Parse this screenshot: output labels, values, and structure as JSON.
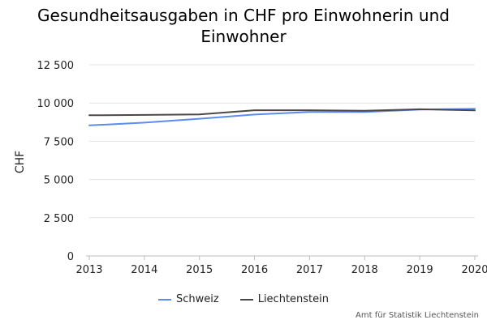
{
  "chart_data": {
    "type": "line",
    "title": "Gesundheitsausgaben in CHF pro Einwohnerin und Einwohner",
    "ylabel": "CHF",
    "xlabel": "",
    "x": [
      "2013",
      "2014",
      "2015",
      "2016",
      "2017",
      "2018",
      "2019",
      "2020"
    ],
    "ylim": [
      0,
      12500
    ],
    "yticks": [
      0,
      2500,
      5000,
      7500,
      10000,
      12500
    ],
    "ytick_labels": [
      "0",
      "2 500",
      "5 000",
      "7 500",
      "10 000",
      "12 500"
    ],
    "grid": true,
    "legend_position": "bottom-center",
    "series": [
      {
        "name": "Schweiz",
        "color": "#5b8def",
        "values": [
          8540,
          8720,
          8970,
          9250,
          9410,
          9420,
          9570,
          9630
        ]
      },
      {
        "name": "Liechtenstein",
        "color": "#4d4646",
        "values": [
          9200,
          9220,
          9260,
          9530,
          9530,
          9490,
          9590,
          9520
        ]
      }
    ]
  },
  "source": "Amt für Statistik Liechtenstein"
}
